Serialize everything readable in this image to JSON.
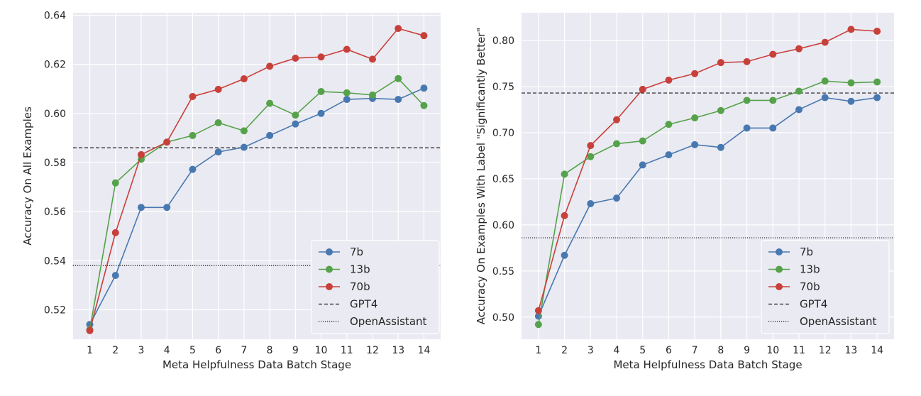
{
  "chart_data": [
    {
      "type": "line",
      "xlabel": "Meta Helpfulness Data Batch Stage",
      "ylabel": "Accuracy On All Examples",
      "x": [
        1,
        2,
        3,
        4,
        5,
        6,
        7,
        8,
        9,
        10,
        11,
        12,
        13,
        14
      ],
      "xticks": [
        "1",
        "2",
        "3",
        "4",
        "5",
        "6",
        "7",
        "8",
        "9",
        "10",
        "11",
        "12",
        "13",
        "14"
      ],
      "yticks": [
        "0.52",
        "0.54",
        "0.56",
        "0.58",
        "0.60",
        "0.62",
        "0.64"
      ],
      "ylim": [
        0.508,
        0.641
      ],
      "xlim": [
        0.35,
        14.65
      ],
      "grid": true,
      "legend_position": "lower-right",
      "series": [
        {
          "name": "7b",
          "color": "#4878b0",
          "values": [
            0.514,
            0.534,
            0.5617,
            0.5617,
            0.5772,
            0.5843,
            0.5862,
            0.591,
            0.5957,
            0.6,
            0.6057,
            0.6061,
            0.6057,
            0.6103
          ]
        },
        {
          "name": "13b",
          "color": "#55a24a",
          "values": [
            0.5119,
            0.5717,
            0.5813,
            0.5883,
            0.591,
            0.5962,
            0.5929,
            0.6041,
            0.5993,
            0.6089,
            0.6084,
            0.6075,
            0.6142,
            0.6032
          ]
        },
        {
          "name": "70b",
          "color": "#c8403a",
          "values": [
            0.5115,
            0.5514,
            0.5832,
            0.5883,
            0.6069,
            0.6098,
            0.6141,
            0.6192,
            0.6225,
            0.623,
            0.6261,
            0.6221,
            0.6346,
            0.6317
          ]
        }
      ],
      "references": [
        {
          "name": "GPT4",
          "value": 0.586,
          "style": "dashed"
        },
        {
          "name": "OpenAssistant",
          "value": 0.538,
          "style": "dotted"
        }
      ]
    },
    {
      "type": "line",
      "xlabel": "Meta Helpfulness Data Batch Stage",
      "ylabel": "Accuracy On Examples With Label \"Significantly Better\"",
      "x": [
        1,
        2,
        3,
        4,
        5,
        6,
        7,
        8,
        9,
        10,
        11,
        12,
        13,
        14
      ],
      "xticks": [
        "1",
        "2",
        "3",
        "4",
        "5",
        "6",
        "7",
        "8",
        "9",
        "10",
        "11",
        "12",
        "13",
        "14"
      ],
      "yticks": [
        "0.50",
        "0.55",
        "0.60",
        "0.65",
        "0.70",
        "0.75",
        "0.80"
      ],
      "ylim": [
        0.476,
        0.83
      ],
      "xlim": [
        0.35,
        14.65
      ],
      "grid": true,
      "legend_position": "lower-right",
      "series": [
        {
          "name": "7b",
          "color": "#4878b0",
          "values": [
            0.501,
            0.567,
            0.623,
            0.629,
            0.665,
            0.676,
            0.687,
            0.684,
            0.705,
            0.705,
            0.725,
            0.738,
            0.734,
            0.738
          ]
        },
        {
          "name": "13b",
          "color": "#55a24a",
          "values": [
            0.492,
            0.655,
            0.674,
            0.688,
            0.691,
            0.709,
            0.716,
            0.724,
            0.735,
            0.735,
            0.745,
            0.756,
            0.754,
            0.755
          ]
        },
        {
          "name": "70b",
          "color": "#c8403a",
          "values": [
            0.507,
            0.61,
            0.686,
            0.714,
            0.747,
            0.757,
            0.764,
            0.776,
            0.777,
            0.785,
            0.791,
            0.798,
            0.812,
            0.81
          ]
        }
      ],
      "references": [
        {
          "name": "GPT4",
          "value": 0.743,
          "style": "dashed"
        },
        {
          "name": "OpenAssistant",
          "value": 0.586,
          "style": "dotted"
        }
      ]
    }
  ]
}
